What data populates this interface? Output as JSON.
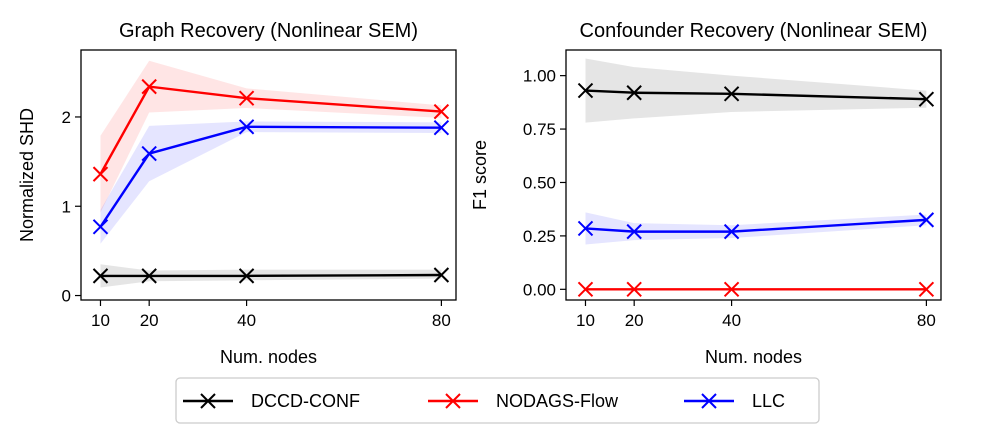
{
  "chart_data": [
    {
      "type": "line",
      "title": "Graph Recovery (Nonlinear SEM)",
      "xlabel": "Num. nodes",
      "ylabel": "Normalized SHD",
      "x": [
        10,
        20,
        40,
        80
      ],
      "xticks": [
        "10",
        "20",
        "40",
        "80"
      ],
      "xlim": [
        6,
        83
      ],
      "yticks": [
        "0",
        "1",
        "2"
      ],
      "ytick_values": [
        0,
        1,
        2
      ],
      "ylim": [
        -0.05,
        2.75
      ],
      "series": [
        {
          "name": "DCCD-CONF",
          "color": "#000000",
          "values": [
            0.22,
            0.22,
            0.22,
            0.23
          ],
          "lower": [
            0.09,
            0.16,
            0.17,
            0.19
          ],
          "upper": [
            0.35,
            0.28,
            0.29,
            0.29
          ]
        },
        {
          "name": "NODAGS-Flow",
          "color": "#ff0000",
          "values": [
            1.36,
            2.34,
            2.21,
            2.06
          ],
          "lower": [
            0.93,
            2.05,
            2.1,
            1.99
          ],
          "upper": [
            1.79,
            2.63,
            2.32,
            2.13
          ]
        },
        {
          "name": "LLC",
          "color": "#0000ff",
          "values": [
            0.77,
            1.59,
            1.89,
            1.88
          ],
          "lower": [
            0.58,
            1.28,
            1.83,
            1.82
          ],
          "upper": [
            0.96,
            1.9,
            1.95,
            1.94
          ]
        }
      ]
    },
    {
      "type": "line",
      "title": "Confounder Recovery (Nonlinear SEM)",
      "xlabel": "Num. nodes",
      "ylabel": "F1 score",
      "x": [
        10,
        20,
        40,
        80
      ],
      "xticks": [
        "10",
        "20",
        "40",
        "80"
      ],
      "xlim": [
        6,
        83
      ],
      "yticks": [
        "0.00",
        "0.25",
        "0.50",
        "0.75",
        "1.00"
      ],
      "ytick_values": [
        0,
        0.25,
        0.5,
        0.75,
        1.0
      ],
      "ylim": [
        -0.05,
        1.12
      ],
      "series": [
        {
          "name": "DCCD-CONF",
          "color": "#000000",
          "values": [
            0.93,
            0.92,
            0.915,
            0.89
          ],
          "lower": [
            0.78,
            0.8,
            0.83,
            0.85
          ],
          "upper": [
            1.08,
            1.04,
            1.0,
            0.93
          ]
        },
        {
          "name": "NODAGS-Flow",
          "color": "#ff0000",
          "values": [
            0.0,
            0.0,
            0.0,
            0.0
          ],
          "lower": [
            0.0,
            0.0,
            0.0,
            0.0
          ],
          "upper": [
            0.0,
            0.0,
            0.0,
            0.0
          ]
        },
        {
          "name": "LLC",
          "color": "#0000ff",
          "values": [
            0.285,
            0.27,
            0.27,
            0.325
          ],
          "lower": [
            0.21,
            0.23,
            0.24,
            0.3
          ],
          "upper": [
            0.36,
            0.31,
            0.3,
            0.35
          ]
        }
      ]
    }
  ],
  "legend": {
    "position": "bottom-center",
    "entries": [
      "DCCD-CONF",
      "NODAGS-Flow",
      "LLC"
    ],
    "colors": [
      "#000000",
      "#ff0000",
      "#0000ff"
    ]
  }
}
